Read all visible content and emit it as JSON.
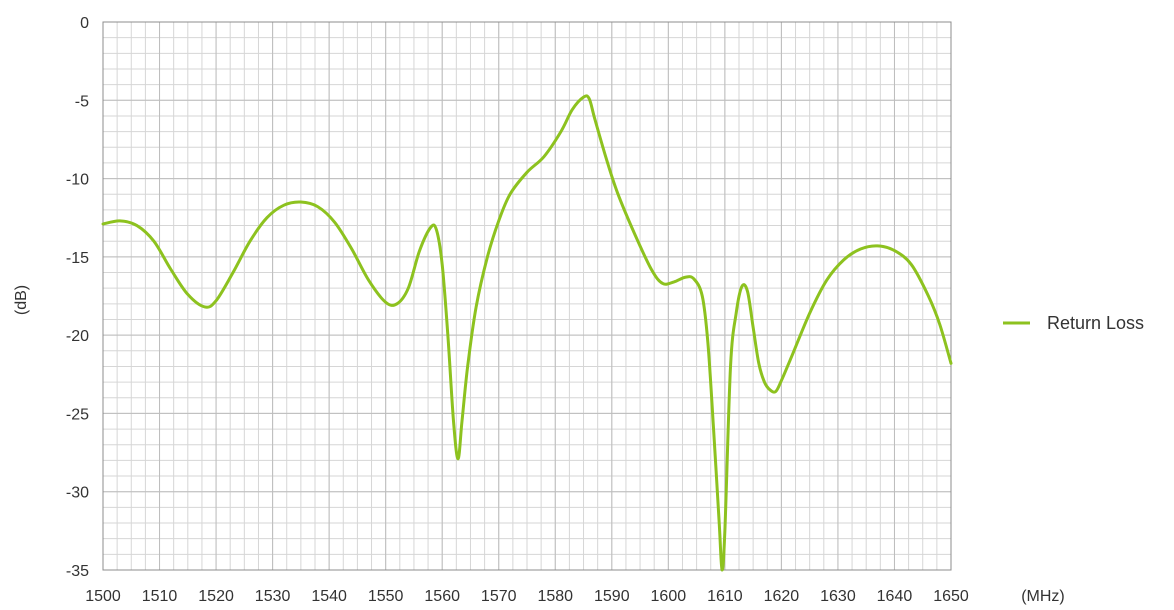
{
  "chart_data": {
    "type": "line",
    "xunit": "(MHz)",
    "yunit": "(dB)",
    "xlim": [
      1500,
      1650
    ],
    "ylim": [
      -35,
      0
    ],
    "xticks": [
      1500,
      1510,
      1520,
      1530,
      1540,
      1550,
      1560,
      1570,
      1580,
      1590,
      1600,
      1610,
      1620,
      1630,
      1640,
      1650
    ],
    "yticks": [
      0,
      -5,
      -10,
      -15,
      -20,
      -25,
      -30,
      -35
    ],
    "x_minor_step": 2.5,
    "y_minor_step": 1,
    "grid": true,
    "legend_position": "right",
    "series": [
      {
        "name": "Return Loss",
        "color": "#8dc21f",
        "x": [
          1500,
          1503,
          1506,
          1509,
          1512,
          1515,
          1518,
          1520,
          1523,
          1526,
          1529,
          1532,
          1535,
          1538,
          1541,
          1544,
          1547,
          1550,
          1552,
          1554,
          1556,
          1558,
          1559,
          1560,
          1561,
          1562,
          1562.8,
          1563.5,
          1564.5,
          1566,
          1568,
          1570,
          1572,
          1575,
          1578,
          1581,
          1583,
          1585,
          1586,
          1587,
          1589,
          1591,
          1594,
          1597,
          1599,
          1601,
          1603,
          1604.5,
          1606,
          1607,
          1608,
          1609,
          1609.5,
          1610,
          1611,
          1612,
          1613,
          1614,
          1615,
          1616,
          1617,
          1618,
          1619,
          1620,
          1622,
          1625,
          1628,
          1631,
          1634,
          1637,
          1640,
          1643,
          1646,
          1648,
          1650
        ],
        "y": [
          -12.9,
          -12.7,
          -13.0,
          -14.0,
          -15.8,
          -17.4,
          -18.2,
          -17.8,
          -16.0,
          -14.0,
          -12.5,
          -11.7,
          -11.5,
          -11.8,
          -12.8,
          -14.5,
          -16.5,
          -17.9,
          -18.0,
          -17.0,
          -14.6,
          -13.1,
          -13.3,
          -15.5,
          -20.0,
          -25.5,
          -27.9,
          -25.5,
          -22.0,
          -18.2,
          -15.0,
          -12.7,
          -11.0,
          -9.6,
          -8.6,
          -7.0,
          -5.6,
          -4.8,
          -4.9,
          -6.2,
          -8.7,
          -10.9,
          -13.5,
          -15.8,
          -16.7,
          -16.6,
          -16.3,
          -16.4,
          -17.5,
          -20.5,
          -26.0,
          -32.0,
          -35.0,
          -32.5,
          -22.0,
          -18.6,
          -16.9,
          -17.2,
          -19.5,
          -21.8,
          -23.0,
          -23.5,
          -23.6,
          -22.9,
          -21.2,
          -18.6,
          -16.5,
          -15.2,
          -14.5,
          -14.3,
          -14.6,
          -15.5,
          -17.5,
          -19.3,
          -21.8
        ]
      }
    ]
  }
}
